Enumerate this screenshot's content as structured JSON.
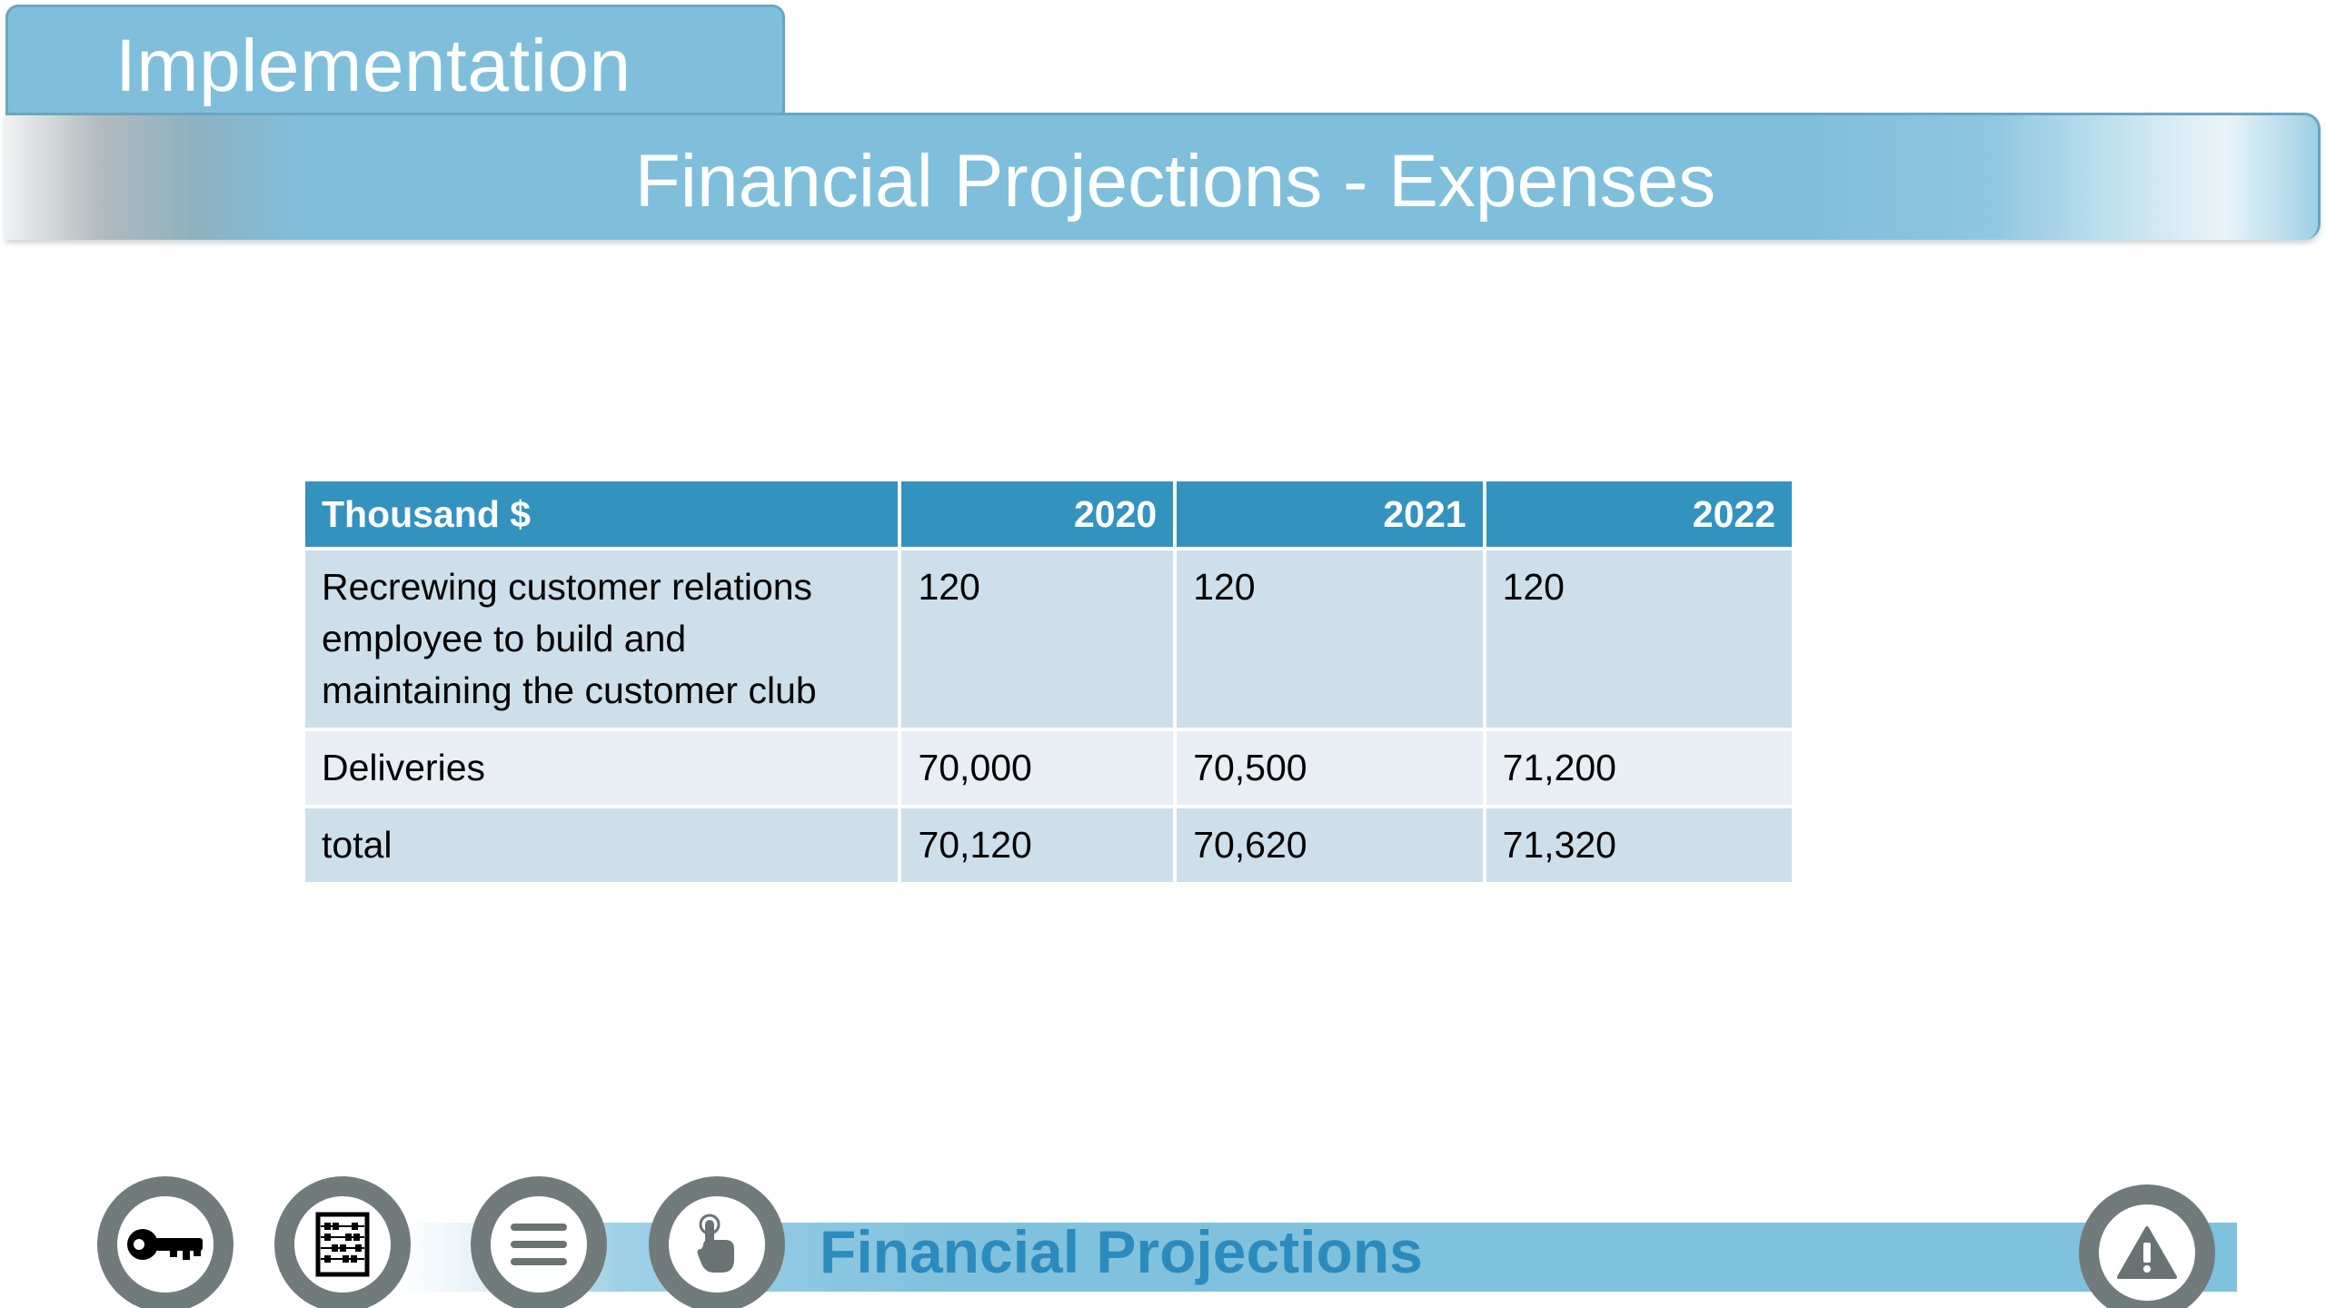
{
  "header": {
    "section": "Implementation",
    "title": "Financial Projections - Expenses"
  },
  "table": {
    "headers": [
      "Thousand $",
      "2020",
      "2021",
      "2022"
    ],
    "rows": [
      {
        "label": "Recrewing customer relations employee to build and maintaining the customer club",
        "values": [
          "120",
          "120",
          "120"
        ]
      },
      {
        "label": "Deliveries",
        "values": [
          "70,000",
          "70,500",
          "71,200"
        ]
      },
      {
        "label": "total",
        "values": [
          "70,120",
          "70,620",
          "71,320"
        ]
      }
    ]
  },
  "footer": {
    "label": "Financial Projections",
    "nav_icons": [
      "key-icon",
      "abacus-icon",
      "menu-icon",
      "touch-icon",
      "warning-icon"
    ]
  },
  "colors": {
    "header_blue": "#80bfdb",
    "table_header": "#3492bf",
    "row_dark": "#cddfeb",
    "row_light": "#e8eef3",
    "footer_text": "#2b8bbf",
    "nav_circle": "#717b7b"
  }
}
